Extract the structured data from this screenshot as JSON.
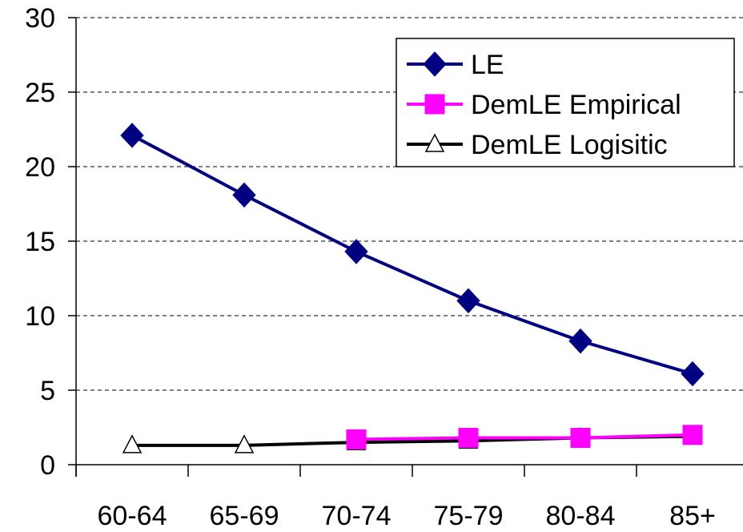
{
  "chart_data": {
    "type": "line",
    "title": "",
    "xlabel": "",
    "ylabel": "",
    "categories": [
      "60-64",
      "65-69",
      "70-74",
      "75-79",
      "80-84",
      "85+"
    ],
    "ylim": [
      0,
      30
    ],
    "yticks": [
      0,
      5,
      10,
      15,
      20,
      25,
      30
    ],
    "grid": "horizontal dashed",
    "legend_position": "top-right",
    "series": [
      {
        "name": "LE",
        "marker": "diamond",
        "color": "#000080",
        "values": [
          22.1,
          18.1,
          14.3,
          11.0,
          8.3,
          6.1
        ]
      },
      {
        "name": "DemLE Empirical",
        "marker": "square",
        "color": "#FF00FF",
        "values": [
          null,
          null,
          1.7,
          1.8,
          1.8,
          2.0
        ]
      },
      {
        "name": "DemLE Logisitic",
        "marker": "triangle",
        "color": "#000000",
        "values": [
          1.3,
          1.3,
          1.5,
          1.6,
          1.8,
          1.9
        ]
      }
    ]
  }
}
